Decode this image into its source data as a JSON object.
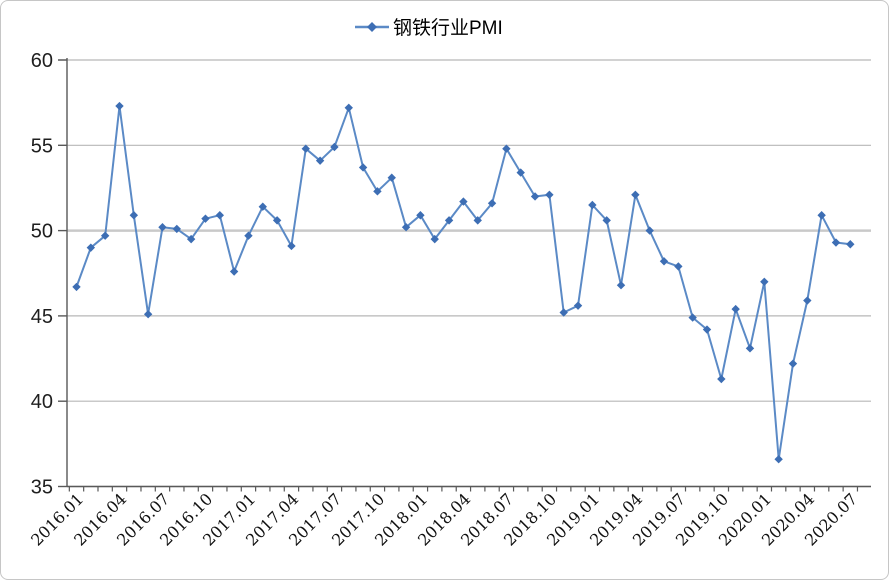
{
  "chart_data": {
    "type": "line",
    "title": "钢铁行业PMI",
    "legend": {
      "position": "top",
      "entries": [
        "钢铁行业PMI"
      ]
    },
    "x_categories": [
      "2016.01",
      "2016.02",
      "2016.03",
      "2016.04",
      "2016.05",
      "2016.06",
      "2016.07",
      "2016.08",
      "2016.09",
      "2016.10",
      "2016.11",
      "2016.12",
      "2017.01",
      "2017.02",
      "2017.03",
      "2017.04",
      "2017.05",
      "2017.06",
      "2017.07",
      "2017.08",
      "2017.09",
      "2017.10",
      "2017.11",
      "2017.12",
      "2018.01",
      "2018.02",
      "2018.03",
      "2018.04",
      "2018.05",
      "2018.06",
      "2018.07",
      "2018.08",
      "2018.09",
      "2018.10",
      "2018.11",
      "2018.12",
      "2019.01",
      "2019.02",
      "2019.03",
      "2019.04",
      "2019.05",
      "2019.06",
      "2019.07",
      "2019.08",
      "2019.09",
      "2019.10",
      "2019.11",
      "2019.12",
      "2020.01",
      "2020.02",
      "2020.03",
      "2020.04",
      "2020.05",
      "2020.06",
      "2020.07"
    ],
    "values": [
      46.7,
      49.0,
      49.7,
      57.3,
      50.9,
      45.1,
      50.2,
      50.1,
      49.5,
      50.7,
      50.9,
      47.6,
      49.7,
      51.4,
      50.6,
      49.1,
      54.8,
      54.1,
      54.9,
      57.2,
      53.7,
      52.3,
      53.1,
      50.2,
      50.9,
      49.5,
      50.6,
      51.7,
      50.6,
      51.6,
      54.8,
      53.4,
      52.0,
      52.1,
      45.2,
      45.6,
      51.5,
      50.6,
      46.8,
      52.1,
      50.0,
      48.2,
      47.9,
      44.9,
      44.2,
      41.3,
      45.4,
      43.1,
      47.0,
      36.6,
      42.2,
      45.9,
      50.9,
      49.3,
      49.2
    ],
    "x_tick_labels": [
      "2016.01",
      "2016.04",
      "2016.07",
      "2016.10",
      "2017.01",
      "2017.04",
      "2017.07",
      "2017.10",
      "2018.01",
      "2018.04",
      "2018.07",
      "2018.10",
      "2019.01",
      "2019.04",
      "2019.07",
      "2019.10",
      "2020.01",
      "2020.04",
      "2020.07"
    ],
    "x_tick_every": 3,
    "y_ticks": [
      35,
      40,
      45,
      50,
      55,
      60
    ],
    "ylim": [
      35,
      60
    ],
    "grid": "horizontal",
    "reference_line_value": 50,
    "marker": "diamond",
    "colors": {
      "line": "#5B8AC6",
      "marker": "#3D6EB4",
      "gridline": "#B7B7B7",
      "reference_line": "#C9C9C9",
      "axis": "#595959",
      "border": "#C6C6C6"
    }
  }
}
